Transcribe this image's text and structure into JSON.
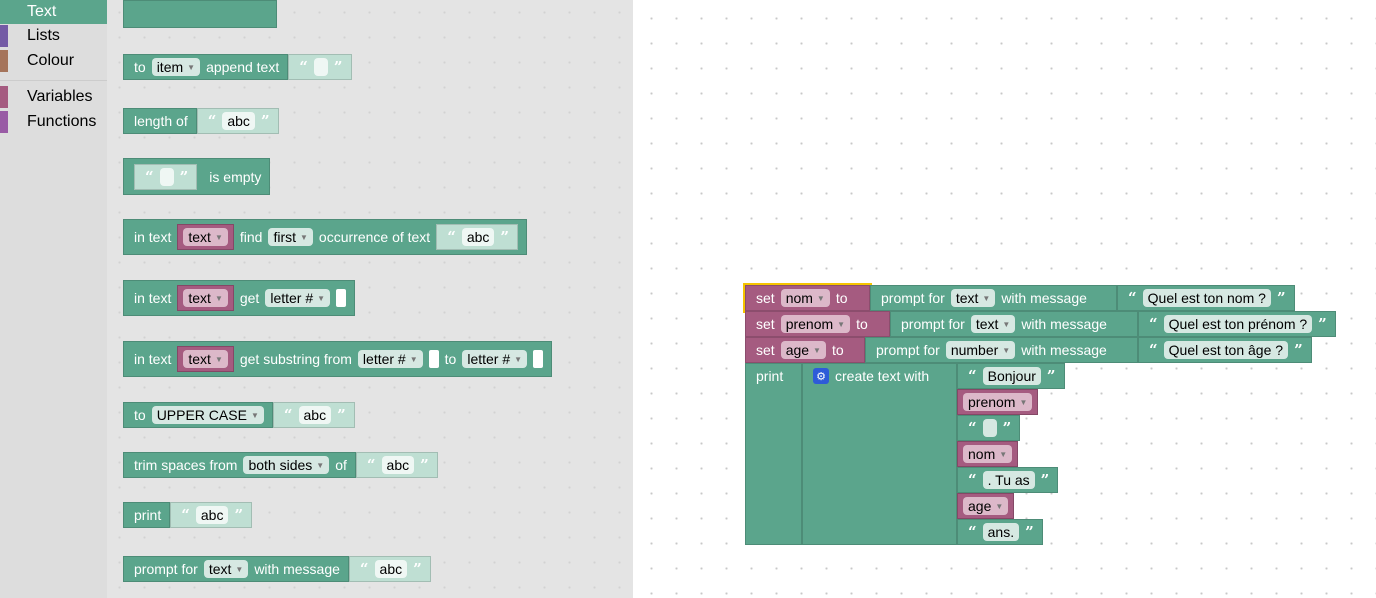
{
  "sidebar": {
    "items": [
      {
        "label": "Text",
        "color": "#5ba58c",
        "selected": true
      },
      {
        "label": "Lists",
        "color": "#745ba5"
      },
      {
        "label": "Colour",
        "color": "#a5745b"
      },
      {
        "label": "Variables",
        "color": "#a55b80"
      },
      {
        "label": "Functions",
        "color": "#995ba5"
      }
    ]
  },
  "flyout": {
    "append": {
      "to": "to",
      "var": "item",
      "label": "append text"
    },
    "length": {
      "label": "length of",
      "text": "abc"
    },
    "isempty": {
      "label": "is empty"
    },
    "find": {
      "in": "in text",
      "var": "text",
      "find": "find",
      "mode": "first",
      "occ": "occurrence of text",
      "text": "abc"
    },
    "getletter": {
      "in": "in text",
      "var": "text",
      "get": "get",
      "mode": "letter #"
    },
    "substring": {
      "in": "in text",
      "var": "text",
      "get": "get substring from",
      "from": "letter #",
      "to": "to",
      "tomode": "letter #"
    },
    "upper": {
      "to": "to",
      "mode": "UPPER CASE",
      "text": "abc"
    },
    "trim": {
      "label": "trim spaces from",
      "mode": "both sides",
      "of": "of",
      "text": "abc"
    },
    "print": {
      "label": "print",
      "text": "abc"
    },
    "prompt": {
      "label": "prompt for",
      "type": "text",
      "with": "with message",
      "text": "abc"
    }
  },
  "workspace": {
    "set_label": "set",
    "to_label": "to",
    "prompt_label": "prompt for",
    "with_label": "with message",
    "sets": [
      {
        "var": "nom",
        "type": "text",
        "message": "Quel est ton nom ?"
      },
      {
        "var": "prenom",
        "type": "text",
        "message": "Quel est ton prénom ?"
      },
      {
        "var": "age",
        "type": "number",
        "message": "Quel est ton âge ?"
      }
    ],
    "print_label": "print",
    "create_label": "create text with",
    "items": [
      {
        "kind": "text",
        "value": "Bonjour"
      },
      {
        "kind": "var",
        "value": "prenom"
      },
      {
        "kind": "text",
        "value": ""
      },
      {
        "kind": "var",
        "value": "nom"
      },
      {
        "kind": "text",
        "value": ". Tu as"
      },
      {
        "kind": "var",
        "value": "age"
      },
      {
        "kind": "text",
        "value": "ans."
      }
    ]
  },
  "colors": {
    "text": "#5ba58c",
    "variables": "#a55b80",
    "selected_outline": "#f5c400"
  }
}
